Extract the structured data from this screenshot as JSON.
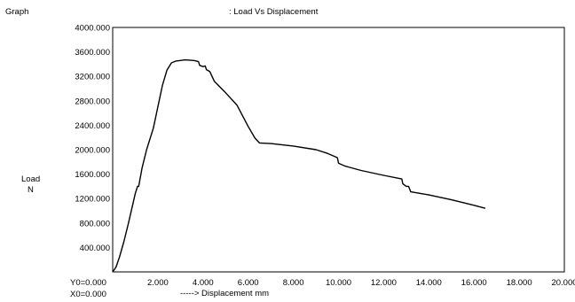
{
  "header": {
    "label": "Graph",
    "value": ": Load Vs Displacement"
  },
  "ylabel_lines": [
    "Load",
    "N"
  ],
  "origin": {
    "y0": "Y0=0.000",
    "x0": "X0=0.000"
  },
  "xlabel": "-----> Displacement  mm",
  "colors": {
    "line": "#000000",
    "frame": "#000000",
    "background": "#ffffff"
  },
  "chart_data": {
    "type": "line",
    "title": "Load Vs Displacement",
    "xlabel": "Displacement  mm",
    "ylabel": "Load N",
    "xlim": [
      0,
      20
    ],
    "ylim": [
      0,
      4000
    ],
    "grid": false,
    "x_ticks": [
      "2.000",
      "4.000",
      "6.000",
      "8.000",
      "10.000",
      "12.000",
      "14.000",
      "16.000",
      "18.000",
      "20.000"
    ],
    "y_ticks": [
      "400.000",
      "800.000",
      "1200.000",
      "1600.000",
      "2000.000",
      "2400.000",
      "2800.000",
      "3200.000",
      "3600.000",
      "4000.000"
    ],
    "series": [
      {
        "x": [
          0.0,
          0.15,
          0.3,
          0.5,
          0.7,
          0.9,
          1.0,
          1.1,
          1.15,
          1.3,
          1.5,
          1.8,
          2.0,
          2.2,
          2.4,
          2.6,
          2.8,
          3.0,
          3.2,
          3.6,
          3.8,
          3.85,
          4.0,
          4.1,
          4.15,
          4.3,
          4.5,
          5.0,
          5.5,
          6.0,
          6.3,
          6.5,
          7.0,
          8.0,
          9.0,
          9.5,
          9.95,
          10.0,
          10.05,
          10.3,
          10.5,
          11.0,
          12.0,
          12.8,
          12.85,
          13.0,
          13.1,
          13.2,
          14.0,
          15.0,
          16.0,
          16.5
        ],
        "y": [
          0,
          80,
          240,
          500,
          800,
          1120,
          1280,
          1400,
          1400,
          1700,
          2000,
          2350,
          2700,
          3050,
          3300,
          3420,
          3450,
          3460,
          3470,
          3460,
          3440,
          3380,
          3360,
          3370,
          3310,
          3280,
          3120,
          2930,
          2730,
          2380,
          2190,
          2110,
          2100,
          2060,
          2000,
          1940,
          1870,
          1780,
          1770,
          1730,
          1710,
          1660,
          1580,
          1520,
          1440,
          1400,
          1400,
          1310,
          1260,
          1180,
          1090,
          1040
        ]
      }
    ]
  }
}
